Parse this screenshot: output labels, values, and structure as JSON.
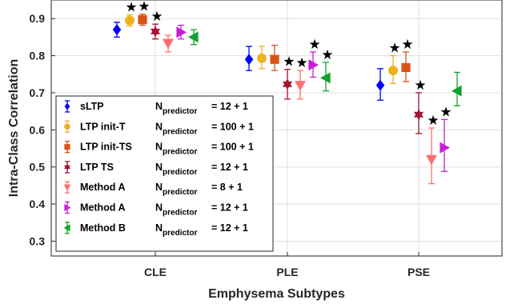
{
  "chart_data": {
    "type": "scatter",
    "title": "",
    "xlabel": "Emphysema Subtypes",
    "ylabel": "Intra-Class Correlation",
    "categories": [
      "CLE",
      "PLE",
      "PSE"
    ],
    "ylim": [
      0.26,
      0.95
    ],
    "yticks": [
      "0.3",
      "0.4",
      "0.5",
      "0.6",
      "0.7",
      "0.8",
      "0.9"
    ],
    "grid": true,
    "legend_position": "lower-left",
    "significance_marker": "★",
    "series": [
      {
        "name": "sLTP",
        "predictor_label": "N",
        "predictor_sub": "predictor",
        "predictor_value": "= 12 + 1",
        "marker": "diamond",
        "color": "#0000ff",
        "values": [
          0.87,
          0.79,
          0.72
        ],
        "lower": [
          0.85,
          0.76,
          0.68
        ],
        "upper": [
          0.89,
          0.825,
          0.765
        ],
        "star": [
          false,
          false,
          false
        ]
      },
      {
        "name": "LTP init-T",
        "predictor_label": "N",
        "predictor_sub": "predictor",
        "predictor_value": "= 100 + 1",
        "marker": "circle",
        "color": "#edb120",
        "values": [
          0.895,
          0.793,
          0.76
        ],
        "lower": [
          0.88,
          0.765,
          0.725
        ],
        "upper": [
          0.91,
          0.825,
          0.8
        ],
        "star": [
          true,
          false,
          true
        ]
      },
      {
        "name": "LTP init-TS",
        "predictor_label": "N",
        "predictor_sub": "predictor",
        "predictor_value": "= 100 + 1",
        "marker": "square",
        "color": "#d95319",
        "values": [
          0.897,
          0.79,
          0.768
        ],
        "lower": [
          0.882,
          0.76,
          0.73
        ],
        "upper": [
          0.912,
          0.828,
          0.81
        ],
        "star": [
          true,
          false,
          true
        ]
      },
      {
        "name": "LTP TS",
        "predictor_label": "N",
        "predictor_sub": "predictor",
        "predictor_value": "= 12 + 1",
        "marker": "hexagram",
        "color": "#a2142f",
        "values": [
          0.865,
          0.723,
          0.641
        ],
        "lower": [
          0.845,
          0.683,
          0.59
        ],
        "upper": [
          0.885,
          0.763,
          0.7
        ],
        "star": [
          true,
          true,
          true
        ]
      },
      {
        "name": "Method A",
        "predictor_label": "N",
        "predictor_sub": "predictor",
        "predictor_value": "= 8 + 1",
        "marker": "triangle-down",
        "color": "#ff6f6f",
        "values": [
          0.833,
          0.72,
          0.52
        ],
        "lower": [
          0.81,
          0.683,
          0.455
        ],
        "upper": [
          0.855,
          0.76,
          0.605
        ],
        "star": [
          false,
          true,
          true
        ]
      },
      {
        "name": "Method A",
        "predictor_label": "N",
        "predictor_sub": "predictor",
        "predictor_value": "= 12 + 1",
        "marker": "triangle-right",
        "color": "#c71ed6",
        "values": [
          0.863,
          0.775,
          0.552
        ],
        "lower": [
          0.845,
          0.742,
          0.488
        ],
        "upper": [
          0.882,
          0.81,
          0.628
        ],
        "star": [
          false,
          true,
          true
        ]
      },
      {
        "name": "Method B",
        "predictor_label": "N",
        "predictor_sub": "predictor",
        "predictor_value": "= 12 + 1",
        "marker": "triangle-left",
        "color": "#11a12c",
        "values": [
          0.85,
          0.74,
          0.705
        ],
        "lower": [
          0.83,
          0.705,
          0.665
        ],
        "upper": [
          0.87,
          0.782,
          0.755
        ],
        "star": [
          false,
          true,
          false
        ]
      }
    ]
  }
}
